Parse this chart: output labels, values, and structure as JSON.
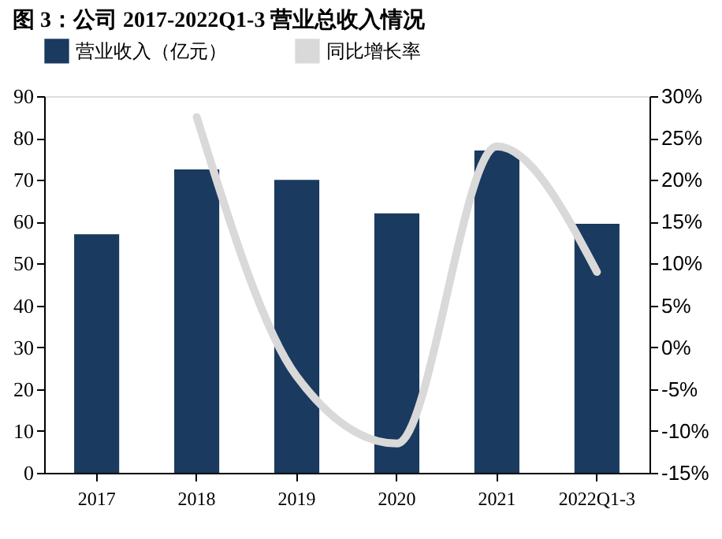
{
  "chart_data": {
    "type": "bar",
    "title": "图 3：公司 2017-2022Q1-3 营业总收入情况",
    "categories": [
      "2017",
      "2018",
      "2019",
      "2020",
      "2021",
      "2022Q1-3"
    ],
    "series": [
      {
        "name": "营业收入（亿元）",
        "color": "#1a3a5f",
        "values": [
          57,
          72.5,
          70,
          62,
          77,
          59.5
        ]
      },
      {
        "name": "同比增长率",
        "type": "line",
        "axis": "y2",
        "color": "#d9d9d9",
        "values": [
          null,
          27.5,
          -3.5,
          -11.5,
          24,
          9
        ]
      }
    ],
    "ylim": [
      0,
      90
    ],
    "yticks": [
      0,
      10,
      20,
      30,
      40,
      50,
      60,
      70,
      80,
      90
    ],
    "y2lim": [
      -15,
      30
    ],
    "y2ticks": [
      {
        "value": -15,
        "label": "-15%"
      },
      {
        "value": -10,
        "label": "-10%"
      },
      {
        "value": -5,
        "label": "-5%"
      },
      {
        "value": 0,
        "label": "0%"
      },
      {
        "value": 5,
        "label": "5%"
      },
      {
        "value": 10,
        "label": "10%"
      },
      {
        "value": 15,
        "label": "15%"
      },
      {
        "value": 20,
        "label": "20%"
      },
      {
        "value": 25,
        "label": "25%"
      },
      {
        "value": 30,
        "label": "30%"
      }
    ],
    "legend": "top",
    "grid": false
  }
}
